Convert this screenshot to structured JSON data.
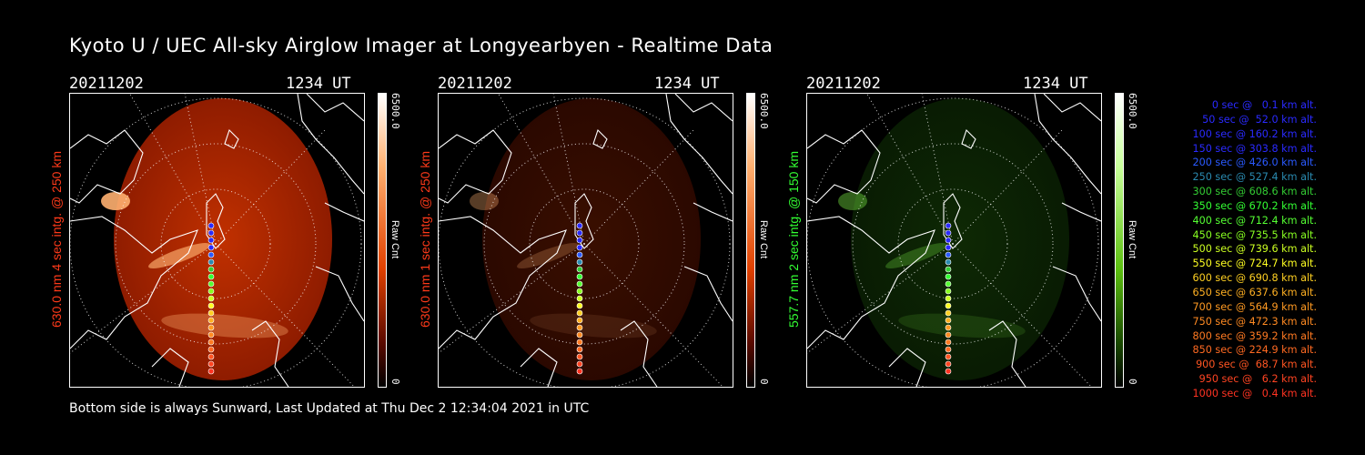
{
  "title": "Kyoto U / UEC All-sky Airglow Imager at Longyearbyen - Realtime Data",
  "footer": "Bottom side is always Sunward, Last Updated at Thu Dec  2 12:34:04 2021 in UTC",
  "panels": [
    {
      "date": "20211202",
      "ut": "1234 UT",
      "ylabel": "630.0 nm 4 sec intg. @ 250 km",
      "ylabel_color": "#ff3a1a",
      "cbar_max": "6500.0",
      "cbar_label": "Raw Cnt",
      "cbar_min": "0",
      "colormap": "red",
      "intensity": 1.0
    },
    {
      "date": "20211202",
      "ut": "1234 UT",
      "ylabel": "630.0 nm 1 sec intg. @ 250 km",
      "ylabel_color": "#ff3a1a",
      "cbar_max": "6500.0",
      "cbar_label": "Raw Cnt",
      "cbar_min": "0",
      "colormap": "red",
      "intensity": 0.3
    },
    {
      "date": "20211202",
      "ut": "1234 UT",
      "ylabel": "557.7 nm 2 sec intg. @ 150 km",
      "ylabel_color": "#33ff33",
      "cbar_max": "6500.0",
      "cbar_label": "Raw Cnt",
      "cbar_min": "0",
      "colormap": "green",
      "intensity": 0.45
    }
  ],
  "legend": [
    {
      "text": "0 sec @   0.1 km alt.",
      "color": "#2a2aff"
    },
    {
      "text": "50 sec @  52.0 km alt.",
      "color": "#2a2aff"
    },
    {
      "text": "100 sec @ 160.2 km alt.",
      "color": "#2a2aff"
    },
    {
      "text": "150 sec @ 303.8 km alt.",
      "color": "#2a2aff"
    },
    {
      "text": "200 sec @ 426.0 km alt.",
      "color": "#2a5aff"
    },
    {
      "text": "250 sec @ 527.4 km alt.",
      "color": "#2a8ab0"
    },
    {
      "text": "300 sec @ 608.6 km alt.",
      "color": "#33cc33"
    },
    {
      "text": "350 sec @ 670.2 km alt.",
      "color": "#33ff33"
    },
    {
      "text": "400 sec @ 712.4 km alt.",
      "color": "#55ff33"
    },
    {
      "text": "450 sec @ 735.5 km alt.",
      "color": "#88ff22"
    },
    {
      "text": "500 sec @ 739.6 km alt.",
      "color": "#ccff22"
    },
    {
      "text": "550 sec @ 724.7 km alt.",
      "color": "#ffff22"
    },
    {
      "text": "600 sec @ 690.8 km alt.",
      "color": "#ffd022"
    },
    {
      "text": "650 sec @ 637.6 km alt.",
      "color": "#ffb022"
    },
    {
      "text": "700 sec @ 564.9 km alt.",
      "color": "#ff9a22"
    },
    {
      "text": "750 sec @ 472.3 km alt.",
      "color": "#ff8a22"
    },
    {
      "text": "800 sec @ 359.2 km alt.",
      "color": "#ff7a22"
    },
    {
      "text": "850 sec @ 224.9 km alt.",
      "color": "#ff6a22"
    },
    {
      "text": "900 sec @  68.7 km alt.",
      "color": "#ff5522"
    },
    {
      "text": "950 sec @   6.2 km alt.",
      "color": "#ff4422"
    },
    {
      "text": "1000 sec @   0.4 km alt.",
      "color": "#ff3322"
    }
  ]
}
